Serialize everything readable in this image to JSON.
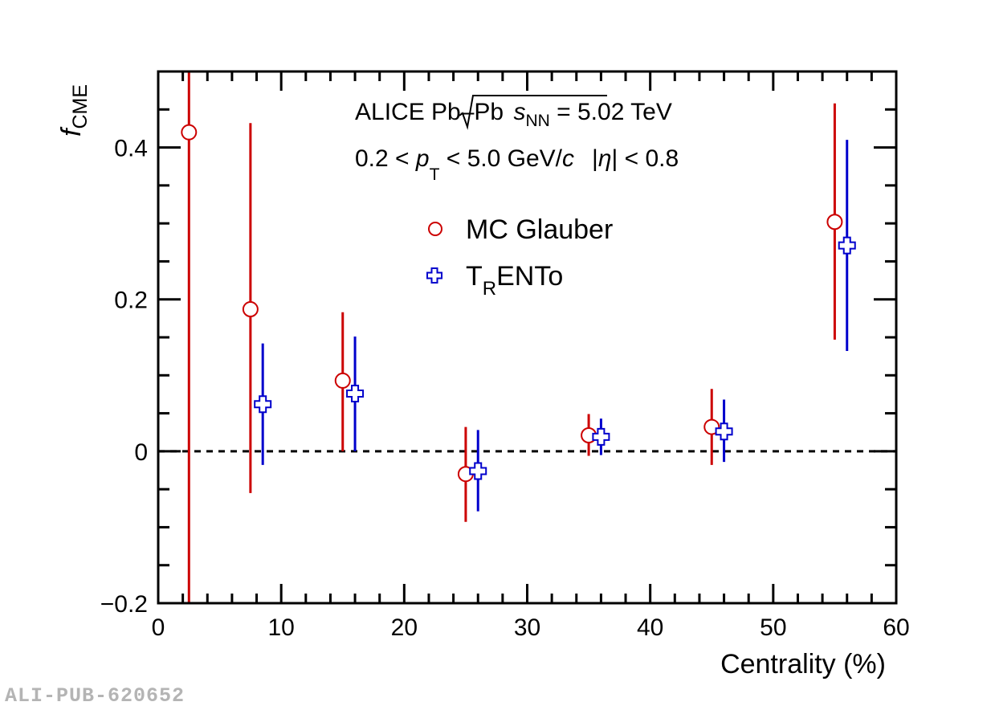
{
  "chart_data": {
    "type": "scatter",
    "title": "",
    "xlabel": "Centrality (%)",
    "ylabel_main": "f",
    "ylabel_sub": "CME",
    "xlim": [
      0,
      60
    ],
    "ylim": [
      -0.2,
      0.5
    ],
    "x_ticks": [
      0,
      10,
      20,
      30,
      40,
      50,
      60
    ],
    "x_tick_labels": [
      "0",
      "10",
      "20",
      "30",
      "40",
      "50",
      "60"
    ],
    "y_ticks": [
      -0.2,
      0,
      0.2,
      0.4
    ],
    "y_tick_labels": [
      "−0.2",
      "0",
      "0.2",
      "0.4"
    ],
    "reference_line": 0,
    "grid": false,
    "annotations": {
      "line1_pre": "ALICE Pb–Pb ",
      "line1_sqrt_var": "s",
      "line1_sqrt_sub": "NN",
      "line1_post": " = 5.02 TeV",
      "line2_a": "0.2 < ",
      "line2_p": "p",
      "line2_T": "T",
      "line2_b": " < 5.0 GeV/",
      "line2_c": "c",
      "line2_eta_open": "|",
      "line2_eta": "η",
      "line2_eta_close": "| < 0.8"
    },
    "legend_position": "top-center",
    "series": [
      {
        "name": "MC Glauber",
        "name_parts": [
          "MC Glauber"
        ],
        "marker": "open-circle",
        "color": "#cc0000",
        "x": [
          2.5,
          7.5,
          15,
          25,
          35,
          45,
          55
        ],
        "y": [
          0.42,
          0.187,
          0.093,
          -0.03,
          0.021,
          0.032,
          0.302
        ],
        "y_err_high": [
          0.52,
          0.432,
          0.183,
          0.032,
          0.049,
          0.082,
          0.458
        ],
        "y_err_low": [
          -0.22,
          -0.055,
          0.0,
          -0.093,
          -0.006,
          -0.018,
          0.147
        ]
      },
      {
        "name": "TRENTo",
        "name_parts": [
          "T",
          "R",
          "ENTo"
        ],
        "marker": "open-cross",
        "color": "#0000cc",
        "x": [
          8.5,
          16,
          26,
          36,
          46,
          56
        ],
        "y": [
          0.062,
          0.076,
          -0.026,
          0.019,
          0.026,
          0.271
        ],
        "y_err_high": [
          0.142,
          0.151,
          0.028,
          0.043,
          0.068,
          0.41
        ],
        "y_err_low": [
          -0.018,
          0.0,
          -0.079,
          -0.005,
          -0.014,
          0.132
        ]
      }
    ]
  },
  "watermark": "ALI-PUB-620652"
}
